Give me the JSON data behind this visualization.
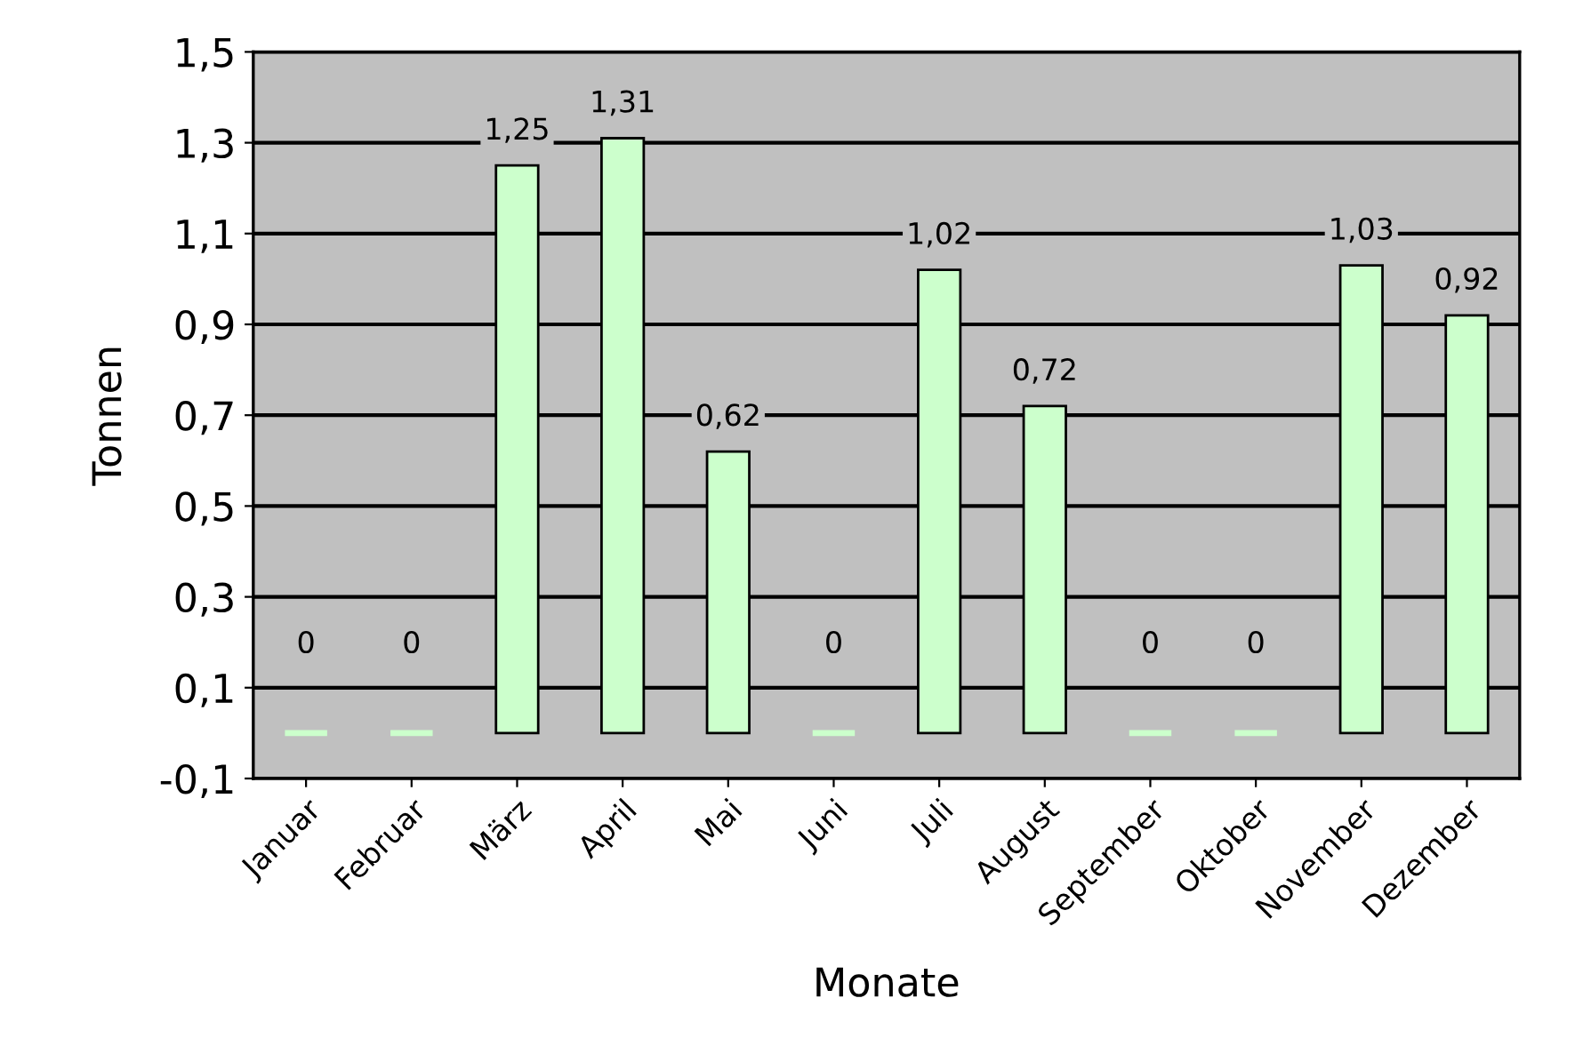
{
  "chart_data": {
    "type": "bar",
    "xlabel": "Monate",
    "ylabel": "Tonnen",
    "categories": [
      "Januar",
      "Februar",
      "März",
      "April",
      "Mai",
      "Juni",
      "Juli",
      "August",
      "September",
      "Oktober",
      "November",
      "Dezember"
    ],
    "values": [
      0,
      0,
      1.25,
      1.31,
      0.62,
      0,
      1.02,
      0.72,
      0,
      0,
      1.03,
      0.92
    ],
    "value_labels": [
      "0",
      "0",
      "1,25",
      "1,31",
      "0,62",
      "0",
      "1,02",
      "0,72",
      "0",
      "0",
      "1,03",
      "0,92"
    ],
    "color": "#ccffcc",
    "ylim": [
      -0.1,
      1.5
    ],
    "yticks": [
      {
        "value": -0.1,
        "label": "-0,1"
      },
      {
        "value": 0.1,
        "label": "0,1"
      },
      {
        "value": 0.3,
        "label": "0,3"
      },
      {
        "value": 0.5,
        "label": "0,5"
      },
      {
        "value": 0.7,
        "label": "0,7"
      },
      {
        "value": 0.9,
        "label": "0,9"
      },
      {
        "value": 1.1,
        "label": "1,1"
      },
      {
        "value": 1.3,
        "label": "1,3"
      },
      {
        "value": 1.5,
        "label": "1,5"
      }
    ],
    "grid": "y",
    "legend": false
  }
}
